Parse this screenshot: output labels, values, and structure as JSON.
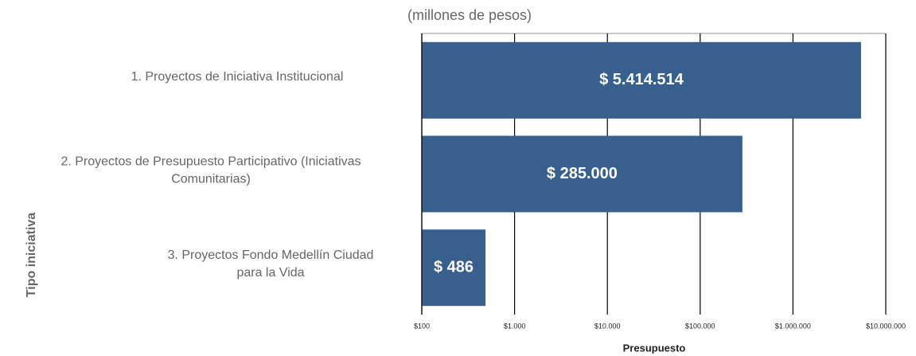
{
  "chart_data": {
    "type": "barh",
    "subtitle": "(millones de pesos)",
    "categories": [
      "1. Proyectos de Iniciativa Institucional",
      "2. Proyectos de Presupuesto Participativo (Iniciativas\nComunitarias)",
      "3. Proyectos Fondo Medellín Ciudad\npara la Vida"
    ],
    "values": [
      5414514,
      285000,
      486
    ],
    "value_labels": [
      "$ 5.414.514",
      "$ 285.000",
      "$ 486"
    ],
    "color": "#37608f",
    "xlim": [
      100,
      10000000
    ],
    "log_x": true,
    "grid": true,
    "xticks": [
      {
        "value": 100,
        "label": "$100"
      },
      {
        "value": 1000,
        "label": "$1.000"
      },
      {
        "value": 10000,
        "label": "$10.000"
      },
      {
        "value": 100000,
        "label": "$100.000"
      },
      {
        "value": 1000000,
        "label": "$1.000.000"
      },
      {
        "value": 10000000,
        "label": "$10.000.000"
      }
    ],
    "xlabel": "Presupuesto",
    "ylabel": "Tipo iniciativa"
  }
}
